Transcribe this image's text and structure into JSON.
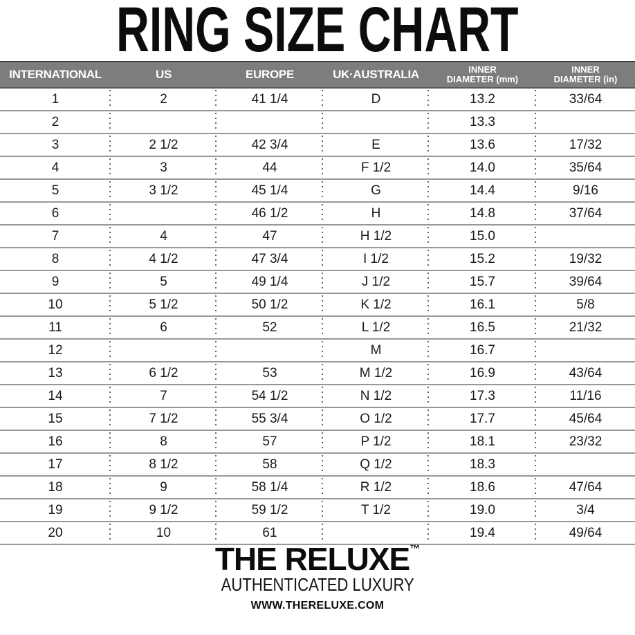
{
  "title": "RING SIZE CHART",
  "table": {
    "columns": [
      {
        "label": "INTERNATIONAL",
        "small": false
      },
      {
        "label": "US",
        "small": false
      },
      {
        "label": "EUROPE",
        "small": false
      },
      {
        "label": "UK·AUSTRALIA",
        "small": false
      },
      {
        "label": "INNER\nDIAMETER (mm)",
        "small": true
      },
      {
        "label": "INNER\nDIAMETER (in)",
        "small": true
      }
    ],
    "rows": [
      [
        "1",
        "2",
        "41 1/4",
        "D",
        "13.2",
        "33/64"
      ],
      [
        "2",
        "",
        "",
        "",
        "13.3",
        ""
      ],
      [
        "3",
        "2 1/2",
        "42 3/4",
        "E",
        "13.6",
        "17/32"
      ],
      [
        "4",
        "3",
        "44",
        "F 1/2",
        "14.0",
        "35/64"
      ],
      [
        "5",
        "3 1/2",
        "45 1/4",
        "G",
        "14.4",
        "9/16"
      ],
      [
        "6",
        "",
        "46 1/2",
        "H",
        "14.8",
        "37/64"
      ],
      [
        "7",
        "4",
        "47",
        "H 1/2",
        "15.0",
        ""
      ],
      [
        "8",
        "4 1/2",
        "47 3/4",
        "I 1/2",
        "15.2",
        "19/32"
      ],
      [
        "9",
        "5",
        "49 1/4",
        "J 1/2",
        "15.7",
        "39/64"
      ],
      [
        "10",
        "5 1/2",
        "50 1/2",
        "K 1/2",
        "16.1",
        "5/8"
      ],
      [
        "11",
        "6",
        "52",
        "L 1/2",
        "16.5",
        "21/32"
      ],
      [
        "12",
        "",
        "",
        "M",
        "16.7",
        ""
      ],
      [
        "13",
        "6 1/2",
        "53",
        "M 1/2",
        "16.9",
        "43/64"
      ],
      [
        "14",
        "7",
        "54 1/2",
        "N 1/2",
        "17.3",
        "11/16"
      ],
      [
        "15",
        "7 1/2",
        "55 3/4",
        "O 1/2",
        "17.7",
        "45/64"
      ],
      [
        "16",
        "8",
        "57",
        "P 1/2",
        "18.1",
        "23/32"
      ],
      [
        "17",
        "8 1/2",
        "58",
        "Q 1/2",
        "18.3",
        ""
      ],
      [
        "18",
        "9",
        "58 1/4",
        "R 1/2",
        "18.6",
        "47/64"
      ],
      [
        "19",
        "9 1/2",
        "59 1/2",
        "T 1/2",
        "19.0",
        "3/4"
      ],
      [
        "20",
        "10",
        "61",
        "",
        "19.4",
        "49/64"
      ]
    ]
  },
  "footer": {
    "brand": "THE RELUXE",
    "trademark": "™",
    "tagline": "AUTHENTICATED LUXURY",
    "website": "WWW.THERELUXE.COM"
  },
  "colors": {
    "header_bg": "#7d7d7d",
    "header_text": "#ffffff",
    "row_line": "#979797",
    "dotted_line": "#636363",
    "text": "#1a1a1a"
  },
  "chart_data": {
    "type": "table",
    "title": "RING SIZE CHART",
    "columns": [
      "INTERNATIONAL",
      "US",
      "EUROPE",
      "UK·AUSTRALIA",
      "INNER DIAMETER (mm)",
      "INNER DIAMETER (in)"
    ],
    "rows": [
      [
        "1",
        "2",
        "41 1/4",
        "D",
        "13.2",
        "33/64"
      ],
      [
        "2",
        "",
        "",
        "",
        "13.3",
        ""
      ],
      [
        "3",
        "2 1/2",
        "42 3/4",
        "E",
        "13.6",
        "17/32"
      ],
      [
        "4",
        "3",
        "44",
        "F 1/2",
        "14.0",
        "35/64"
      ],
      [
        "5",
        "3 1/2",
        "45 1/4",
        "G",
        "14.4",
        "9/16"
      ],
      [
        "6",
        "",
        "46 1/2",
        "H",
        "14.8",
        "37/64"
      ],
      [
        "7",
        "4",
        "47",
        "H 1/2",
        "15.0",
        ""
      ],
      [
        "8",
        "4 1/2",
        "47 3/4",
        "I 1/2",
        "15.2",
        "19/32"
      ],
      [
        "9",
        "5",
        "49 1/4",
        "J 1/2",
        "15.7",
        "39/64"
      ],
      [
        "10",
        "5 1/2",
        "50 1/2",
        "K 1/2",
        "16.1",
        "5/8"
      ],
      [
        "11",
        "6",
        "52",
        "L 1/2",
        "16.5",
        "21/32"
      ],
      [
        "12",
        "",
        "",
        "M",
        "16.7",
        ""
      ],
      [
        "13",
        "6 1/2",
        "53",
        "M 1/2",
        "16.9",
        "43/64"
      ],
      [
        "14",
        "7",
        "54 1/2",
        "N 1/2",
        "17.3",
        "11/16"
      ],
      [
        "15",
        "7 1/2",
        "55 3/4",
        "O 1/2",
        "17.7",
        "45/64"
      ],
      [
        "16",
        "8",
        "57",
        "P 1/2",
        "18.1",
        "23/32"
      ],
      [
        "17",
        "8 1/2",
        "58",
        "Q 1/2",
        "18.3",
        ""
      ],
      [
        "18",
        "9",
        "58 1/4",
        "R 1/2",
        "18.6",
        "47/64"
      ],
      [
        "19",
        "9 1/2",
        "59 1/2",
        "T 1/2",
        "19.0",
        "3/4"
      ],
      [
        "20",
        "10",
        "61",
        "",
        "19.4",
        "49/64"
      ]
    ]
  }
}
